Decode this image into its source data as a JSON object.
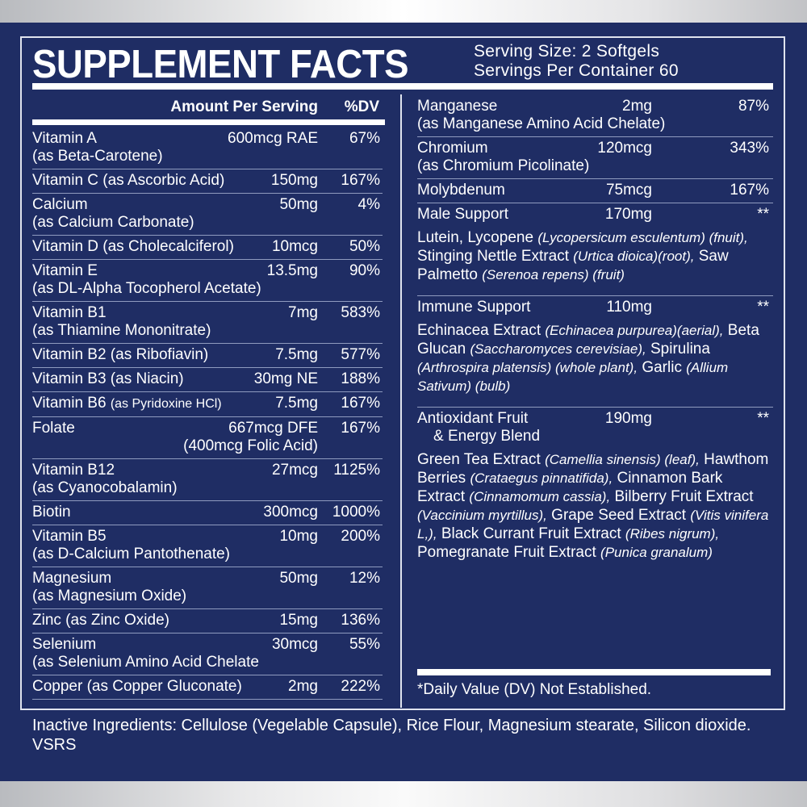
{
  "header": {
    "title": "SUPPLEMENT FACTS",
    "serving_size": "Serving Size: 2  Softgels",
    "servings_per_container": "Servings Per Container 60"
  },
  "left": {
    "amount_header": "Amount Per Serving",
    "dv_header": "%DV",
    "rows": [
      {
        "name": "Vitamin A",
        "sub": "(as Beta-Carotene)",
        "amount": "600mcg RAE",
        "dv": "67%"
      },
      {
        "name": "Vitamin C (as Ascorbic Acid)",
        "amount": "150mg",
        "dv": "167%"
      },
      {
        "name": "Calcium",
        "sub": "(as Calcium Carbonate)",
        "amount": "50mg",
        "dv": "4%"
      },
      {
        "name": "Vitamin D (as Cholecalciferol)",
        "amount": "10mcg",
        "dv": "50%"
      },
      {
        "name": "Vitamin E",
        "sub": "(as DL-Alpha Tocopherol Acetate)",
        "amount": "13.5mg",
        "dv": "90%"
      },
      {
        "name": "Vitamin B1",
        "sub": "(as Thiamine Mononitrate)",
        "amount": "7mg",
        "dv": "583%"
      },
      {
        "name": "Vitamin B2 (as Ribofiavin)",
        "amount": "7.5mg",
        "dv": "577%"
      },
      {
        "name": "Vitamin B3 (as Niacin)",
        "amount": "30mg NE",
        "dv": "188%"
      },
      {
        "name": "Vitamin B6",
        "inline_sub": "(as Pyridoxine HCl)",
        "amount": "7.5mg",
        "dv": "167%"
      },
      {
        "name": "Folate",
        "sub": "(400mcg Folic Acid)",
        "amount": "667mcg DFE",
        "dv": "167%",
        "sub_right": true
      },
      {
        "name": "Vitamin B12",
        "sub": "(as Cyanocobalamin)",
        "amount": "27mcg",
        "dv": "1125%"
      },
      {
        "name": "Biotin",
        "amount": "300mcg",
        "dv": "1000%"
      },
      {
        "name": "Vitamin B5",
        "sub": "(as D-Calcium Pantothenate)",
        "amount": "10mg",
        "dv": "200%"
      },
      {
        "name": "Magnesium",
        "sub": "(as Magnesium Oxide)",
        "amount": "50mg",
        "dv": "12%"
      },
      {
        "name": "Zinc (as Zinc Oxide)",
        "amount": "15mg",
        "dv": "136%"
      },
      {
        "name": "Selenium",
        "sub": "(as Selenium Amino Acid Chelate",
        "amount": "30mcg",
        "dv": "55%"
      },
      {
        "name": "Copper (as Copper Gluconate)",
        "amount": "2mg",
        "dv": "222%"
      }
    ]
  },
  "right": {
    "rows": [
      {
        "name": "Manganese",
        "sub": "(as Manganese Amino Acid Chelate)",
        "amount": "2mg",
        "dv": "87%"
      },
      {
        "name": "Chromium",
        "sub": "(as Chromium Picolinate)",
        "amount": "120mcg",
        "dv": "343%"
      },
      {
        "name": "Molybdenum",
        "amount": "75mcg",
        "dv": "167%"
      },
      {
        "name": "Male Support",
        "amount": "170mg",
        "dv": "**",
        "blend": [
          {
            "t": "Lutein, Lycopene "
          },
          {
            "t": "(Lycopersicum esculentum) (fnuit),",
            "i": true
          },
          {
            "t": " Stinging Nettle Extract "
          },
          {
            "t": "(Urtica dioica)(root),",
            "i": true
          },
          {
            "t": " Saw Palmetto "
          },
          {
            "t": "(Serenoa repens) (fruit)",
            "i": true
          }
        ]
      },
      {
        "name": "Immune Support",
        "amount": "110mg",
        "dv": "**",
        "blend": [
          {
            "t": "Echinacea Extract "
          },
          {
            "t": "(Echinacea purpurea)(aerial),",
            "i": true
          },
          {
            "t": " Beta Glucan "
          },
          {
            "t": "(Saccharomyces cerevisiae),",
            "i": true
          },
          {
            "t": " Spirulina "
          },
          {
            "t": "(Arthrospira platensis) (whole plant),",
            "i": true
          },
          {
            "t": " Garlic "
          },
          {
            "t": "(Allium Sativum) (bulb)",
            "i": true
          }
        ]
      },
      {
        "name": "Antioxidant Fruit",
        "sub": "& Energy Blend",
        "amount": "190mg",
        "dv": "**",
        "blend": [
          {
            "t": "Green Tea Extract "
          },
          {
            "t": "(Camellia sinensis) (leaf),",
            "i": true
          },
          {
            "t": " Hawthom Berries "
          },
          {
            "t": "(Crataegus pinnatifida),",
            "i": true
          },
          {
            "t": " Cinnamon Bark Extract "
          },
          {
            "t": "(Cinnamomum cassia),",
            "i": true
          },
          {
            "t": " Bilberry Fruit Extract "
          },
          {
            "t": "(Vaccinium myrtillus),",
            "i": true
          },
          {
            "t": " Grape Seed Extract "
          },
          {
            "t": "(Vitis vinifera L,),",
            "i": true
          },
          {
            "t": " Black Currant Fruit Extract "
          },
          {
            "t": "(Ribes nigrum),",
            "i": true
          },
          {
            "t": " Pomegranate Fruit Extract "
          },
          {
            "t": "(Punica granalum)",
            "i": true
          }
        ]
      }
    ],
    "footnote": "*Daily Value (DV) Not Established."
  },
  "inactive": {
    "text": "Inactive Ingredients: Cellulose (Vegelable Capsule), Rice Flour, Magnesium stearate, Silicon dioxide.",
    "code": "VSRS"
  },
  "colors": {
    "background": "#1f2d64",
    "text": "#ffffff"
  }
}
